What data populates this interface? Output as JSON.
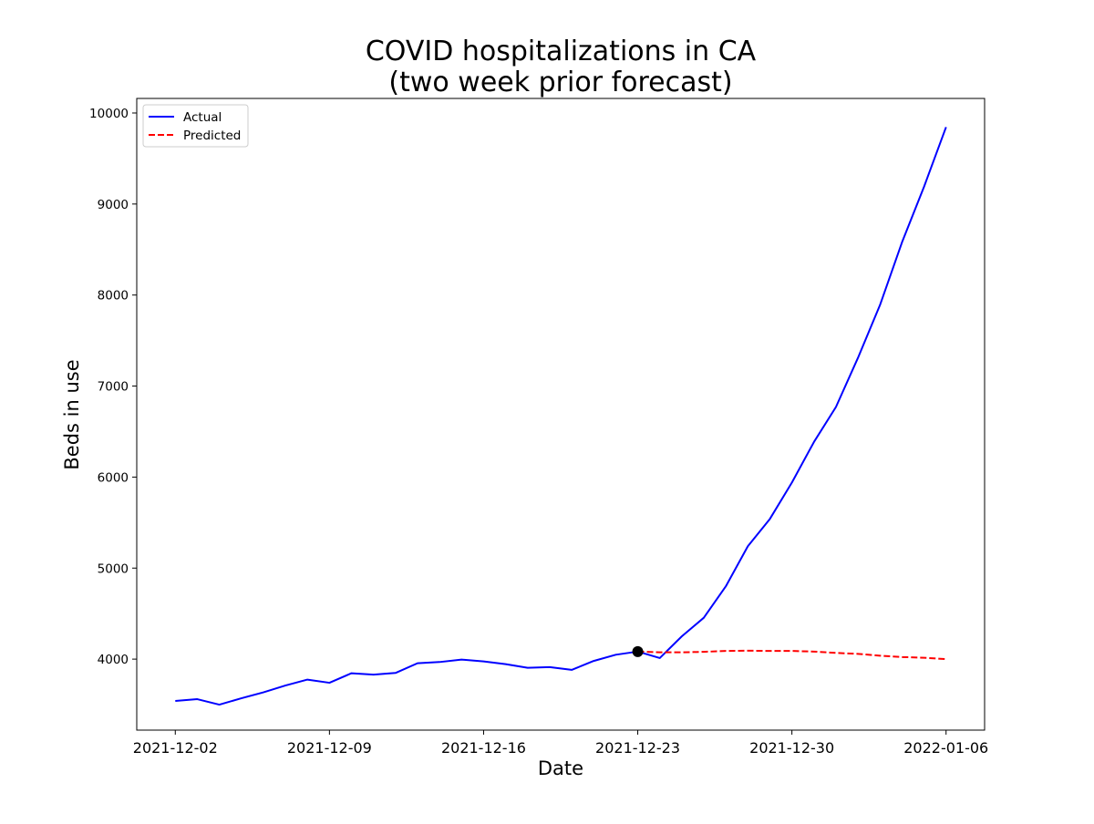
{
  "chart_data": {
    "type": "line",
    "title_lines": [
      "COVID hospitalizations in CA",
      "(two week prior forecast)"
    ],
    "xlabel": "Date",
    "ylabel": "Beds in use",
    "x_ticks": [
      "2021-12-02",
      "2021-12-09",
      "2021-12-16",
      "2021-12-23",
      "2021-12-30",
      "2022-01-06"
    ],
    "y_ticks": [
      4000,
      5000,
      6000,
      7000,
      8000,
      9000,
      10000
    ],
    "xlim": [
      "2021-12-00.25",
      "2022-01-07.75"
    ],
    "ylim": [
      3220,
      10160
    ],
    "grid": false,
    "legend_position": "top-left",
    "colors": {
      "actual": "#0000ff",
      "predicted": "#ff0000",
      "marker": "#000000"
    },
    "series": [
      {
        "name": "Actual",
        "style": "solid",
        "points": [
          [
            "2021-12-02",
            3540
          ],
          [
            "2021-12-03",
            3560
          ],
          [
            "2021-12-04",
            3500
          ],
          [
            "2021-12-05",
            3570
          ],
          [
            "2021-12-06",
            3635
          ],
          [
            "2021-12-07",
            3710
          ],
          [
            "2021-12-08",
            3775
          ],
          [
            "2021-12-09",
            3740
          ],
          [
            "2021-12-10",
            3845
          ],
          [
            "2021-12-11",
            3830
          ],
          [
            "2021-12-12",
            3848
          ],
          [
            "2021-12-13",
            3955
          ],
          [
            "2021-12-14",
            3968
          ],
          [
            "2021-12-15",
            3995
          ],
          [
            "2021-12-16",
            3975
          ],
          [
            "2021-12-17",
            3945
          ],
          [
            "2021-12-18",
            3905
          ],
          [
            "2021-12-19",
            3912
          ],
          [
            "2021-12-20",
            3882
          ],
          [
            "2021-12-21",
            3980
          ],
          [
            "2021-12-22",
            4048
          ],
          [
            "2021-12-23",
            4083
          ],
          [
            "2021-12-24",
            4012
          ],
          [
            "2021-12-25",
            4250
          ],
          [
            "2021-12-26",
            4455
          ],
          [
            "2021-12-27",
            4800
          ],
          [
            "2021-12-28",
            5240
          ],
          [
            "2021-12-29",
            5540
          ],
          [
            "2021-12-30",
            5940
          ],
          [
            "2021-12-31",
            6385
          ],
          [
            "2022-01-01",
            6770
          ],
          [
            "2022-01-02",
            7310
          ],
          [
            "2022-01-03",
            7890
          ],
          [
            "2022-01-04",
            8580
          ],
          [
            "2022-01-05",
            9190
          ],
          [
            "2022-01-06",
            9845
          ]
        ]
      },
      {
        "name": "Predicted",
        "style": "dashed",
        "points": [
          [
            "2021-12-23",
            4083
          ],
          [
            "2021-12-24",
            4075
          ],
          [
            "2021-12-25",
            4075
          ],
          [
            "2021-12-26",
            4080
          ],
          [
            "2021-12-27",
            4090
          ],
          [
            "2021-12-28",
            4093
          ],
          [
            "2021-12-29",
            4090
          ],
          [
            "2021-12-30",
            4090
          ],
          [
            "2021-12-31",
            4083
          ],
          [
            "2022-01-01",
            4068
          ],
          [
            "2022-01-02",
            4058
          ],
          [
            "2022-01-03",
            4038
          ],
          [
            "2022-01-04",
            4023
          ],
          [
            "2022-01-05",
            4015
          ],
          [
            "2022-01-06",
            4000
          ]
        ]
      }
    ],
    "annotations": [
      {
        "type": "marker",
        "x": "2021-12-23",
        "y": 4083
      }
    ]
  }
}
